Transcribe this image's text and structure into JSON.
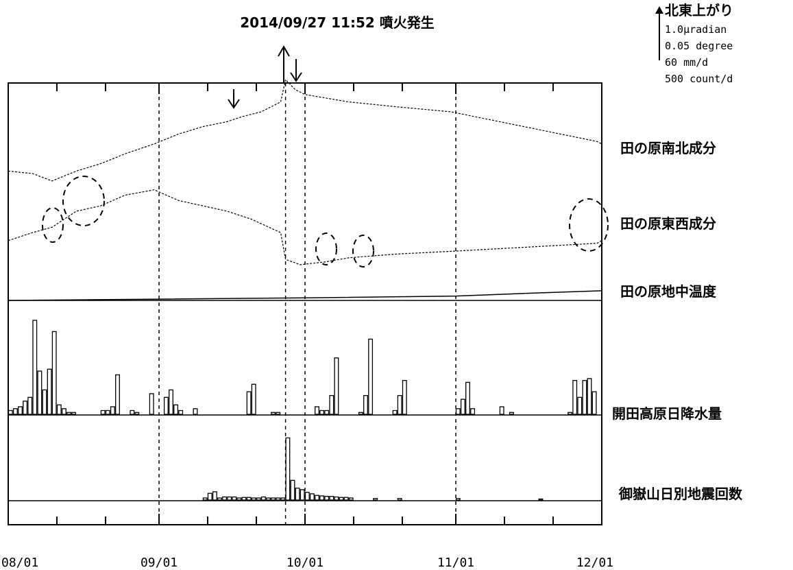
{
  "chart_data": {
    "type": "line",
    "title": "2014/09/27 11:52 噴火発生",
    "eruption_date": "09/27",
    "x_ticks": [
      "08/01",
      "09/01",
      "10/01",
      "11/01",
      "12/01"
    ],
    "x_range": [
      "2014/08/01",
      "2014/12/01"
    ],
    "scale_legend": {
      "direction": "北東上がり",
      "lines": [
        "1.0μradian",
        "0.05 degree",
        "60 mm/d",
        "500 count/d"
      ]
    },
    "panels": [
      {
        "name": "田の原南北成分",
        "type": "line",
        "unit": "μradian",
        "points": [
          [
            "08/01",
            -0.2
          ],
          [
            "08/06",
            -0.25
          ],
          [
            "08/10",
            -0.4
          ],
          [
            "08/15",
            -0.2
          ],
          [
            "08/20",
            -0.05
          ],
          [
            "08/25",
            0.15
          ],
          [
            "08/31",
            0.35
          ],
          [
            "09/05",
            0.55
          ],
          [
            "09/10",
            0.7
          ],
          [
            "09/15",
            0.8
          ],
          [
            "09/18",
            0.9
          ],
          [
            "09/22",
            1.0
          ],
          [
            "09/26",
            1.2
          ],
          [
            "09/27",
            1.65
          ],
          [
            "09/29",
            1.45
          ],
          [
            "10/01",
            1.35
          ],
          [
            "10/10",
            1.2
          ],
          [
            "10/20",
            1.1
          ],
          [
            "10/31",
            1.0
          ],
          [
            "11/10",
            0.8
          ],
          [
            "11/20",
            0.6
          ],
          [
            "11/30",
            0.4
          ],
          [
            "12/01",
            0.35
          ]
        ]
      },
      {
        "name": "田の原東西成分",
        "type": "line",
        "unit": "μradian",
        "points": [
          [
            "08/01",
            -0.1
          ],
          [
            "08/06",
            0.05
          ],
          [
            "08/10",
            0.15
          ],
          [
            "08/15",
            0.45
          ],
          [
            "08/20",
            0.55
          ],
          [
            "08/25",
            0.75
          ],
          [
            "08/31",
            0.85
          ],
          [
            "09/05",
            0.65
          ],
          [
            "09/10",
            0.55
          ],
          [
            "09/15",
            0.45
          ],
          [
            "09/20",
            0.3
          ],
          [
            "09/26",
            0.05
          ],
          [
            "09/27",
            -0.45
          ],
          [
            "09/30",
            -0.55
          ],
          [
            "10/05",
            -0.5
          ],
          [
            "10/10",
            -0.42
          ],
          [
            "10/20",
            -0.35
          ],
          [
            "10/31",
            -0.3
          ],
          [
            "11/10",
            -0.25
          ],
          [
            "11/20",
            -0.2
          ],
          [
            "11/30",
            -0.15
          ],
          [
            "12/01",
            -0.1
          ]
        ]
      },
      {
        "name": "田の原地中温度",
        "type": "line",
        "unit": "degree",
        "points": [
          [
            "08/01",
            0.0
          ],
          [
            "09/01",
            0.003
          ],
          [
            "10/01",
            0.006
          ],
          [
            "11/01",
            0.01
          ],
          [
            "11/15",
            0.016
          ],
          [
            "12/01",
            0.022
          ]
        ]
      },
      {
        "name": "開田高原日降水量",
        "type": "bar",
        "unit": "mm/d",
        "days": [
          "08/01",
          "08/02",
          "08/03",
          "08/04",
          "08/05",
          "08/06",
          "08/07",
          "08/08",
          "08/09",
          "08/10",
          "08/11",
          "08/12",
          "08/13",
          "08/14",
          "08/20",
          "08/21",
          "08/22",
          "08/23",
          "08/26",
          "08/27",
          "08/30",
          "09/02",
          "09/03",
          "09/04",
          "09/05",
          "09/08",
          "09/19",
          "09/20",
          "09/24",
          "09/25",
          "10/03",
          "10/04",
          "10/05",
          "10/06",
          "10/07",
          "10/12",
          "10/13",
          "10/14",
          "10/19",
          "10/20",
          "10/21",
          "11/01",
          "11/02",
          "11/03",
          "11/04",
          "11/10",
          "11/12",
          "11/24",
          "11/25",
          "11/26",
          "11/27",
          "11/28",
          "11/29"
        ],
        "values": [
          2,
          3,
          4,
          7,
          9,
          50,
          23,
          13,
          24,
          44,
          5,
          3,
          1,
          1,
          2,
          2,
          4,
          21,
          2,
          1,
          11,
          9,
          13,
          5,
          2,
          3,
          12,
          16,
          1,
          1,
          4,
          2,
          2,
          10,
          30,
          1,
          10,
          40,
          2,
          10,
          18,
          3,
          8,
          17,
          3,
          4,
          1,
          1,
          18,
          9,
          18,
          19,
          12
        ]
      },
      {
        "name": "御嶽山日別地震回数",
        "type": "bar",
        "unit": "count/d",
        "days": [
          "09/10",
          "09/11",
          "09/12",
          "09/13",
          "09/14",
          "09/15",
          "09/16",
          "09/17",
          "09/18",
          "09/19",
          "09/20",
          "09/21",
          "09/22",
          "09/23",
          "09/24",
          "09/25",
          "09/26",
          "09/27",
          "09/28",
          "09/29",
          "09/30",
          "10/01",
          "10/02",
          "10/03",
          "10/04",
          "10/05",
          "10/06",
          "10/07",
          "10/08",
          "10/09",
          "10/10",
          "10/15",
          "10/20",
          "11/01",
          "11/18"
        ],
        "values": [
          40,
          130,
          160,
          40,
          60,
          60,
          60,
          40,
          50,
          50,
          40,
          40,
          60,
          40,
          40,
          40,
          40,
          1200,
          380,
          230,
          200,
          150,
          120,
          90,
          80,
          70,
          70,
          60,
          50,
          50,
          40,
          30,
          30,
          30,
          20
        ]
      }
    ]
  }
}
